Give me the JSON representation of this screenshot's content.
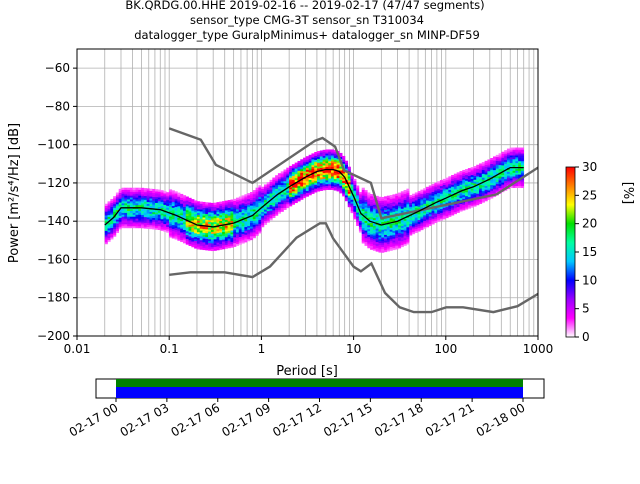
{
  "title_lines": [
    "BK.QRDG.00.HHE   2019-02-16 -- 2019-02-17  (47/47 segments)",
    "sensor_type CMG-3T sensor_sn T310034",
    "datalogger_type GuralpMinimus+ datalogger_sn MINP-DF59"
  ],
  "chart_data": {
    "type": "heatmap",
    "xlabel": "Period [s]",
    "ylabel": "Power [m²/s⁴/Hz] [dB]",
    "x_scale": "log",
    "xlim": [
      0.01,
      1000
    ],
    "ylim": [
      -200,
      -50
    ],
    "x_ticks": [
      0.01,
      0.1,
      1,
      10,
      100,
      1000
    ],
    "x_tick_labels": [
      "0.01",
      "0.1",
      "1",
      "10",
      "100",
      "1000"
    ],
    "y_ticks": [
      -200,
      -180,
      -160,
      -140,
      -120,
      -100,
      -80,
      -60
    ],
    "y_tick_labels": [
      "−200",
      "−180",
      "−160",
      "−140",
      "−120",
      "−100",
      "−80",
      "−60"
    ],
    "grid": true,
    "colorbar": {
      "label": "[%]",
      "range": [
        0,
        30
      ],
      "ticks": [
        0,
        5,
        10,
        15,
        20,
        25,
        30
      ],
      "tick_labels": [
        "0",
        "5",
        "10",
        "15",
        "20",
        "25",
        "30"
      ],
      "colormap": [
        "#ffffff",
        "#ff00ff",
        "#9900ff",
        "#0000ff",
        "#00c8ff",
        "#00ffa0",
        "#00e000",
        "#ffff00",
        "#ff8000",
        "#ff0000"
      ]
    },
    "mode_curve": {
      "color": "#000000",
      "x": [
        0.02,
        0.025,
        0.03,
        0.05,
        0.08,
        0.12,
        0.2,
        0.3,
        0.5,
        0.8,
        1,
        1.5,
        2,
        3,
        4,
        5,
        6,
        7,
        8,
        10,
        12,
        15,
        20,
        30,
        50,
        80,
        100,
        150,
        200,
        300,
        500,
        700
      ],
      "y": [
        -142,
        -138,
        -133,
        -133,
        -134,
        -137,
        -142,
        -143,
        -141,
        -137,
        -133,
        -126,
        -122,
        -117,
        -114,
        -113,
        -113,
        -114,
        -117,
        -127,
        -136,
        -140,
        -142,
        -140,
        -135,
        -130,
        -128,
        -124,
        -122,
        -118,
        -112,
        -112
      ]
    },
    "noise_models": {
      "color": "#666666",
      "nhnm": {
        "x": [
          0.1,
          0.22,
          0.32,
          0.8,
          3.8,
          4.6,
          6.3,
          7.9,
          15.4,
          20,
          354.8,
          1000
        ],
        "y": [
          -91.5,
          -97.4,
          -110.5,
          -120,
          -98,
          -96.5,
          -101,
          -113.5,
          -120,
          -138.5,
          -126,
          -112
        ]
      },
      "nlnm": {
        "x": [
          0.1,
          0.17,
          0.4,
          0.8,
          1.24,
          2.4,
          4.3,
          5,
          6,
          10,
          12,
          15.6,
          21.9,
          31.6,
          45,
          70,
          101,
          154,
          328,
          600,
          1000
        ],
        "y": [
          -168,
          -166.7,
          -166.7,
          -169.2,
          -163.7,
          -148.6,
          -141.1,
          -141.1,
          -149,
          -163.8,
          -166.2,
          -162.1,
          -177.5,
          -185,
          -187.5,
          -187.5,
          -185,
          -185,
          -187.5,
          -184.4,
          -178
        ]
      }
    },
    "data_coverage": {
      "time_labels": [
        "02-17 00",
        "02-17 03",
        "02-17 06",
        "02-17 09",
        "02-17 12",
        "02-17 15",
        "02-17 18",
        "02-17 21",
        "02-18 00"
      ],
      "coverage_fraction": 1.0,
      "bar_colors": {
        "availability": "#008000",
        "used": "#0000ff"
      }
    }
  }
}
